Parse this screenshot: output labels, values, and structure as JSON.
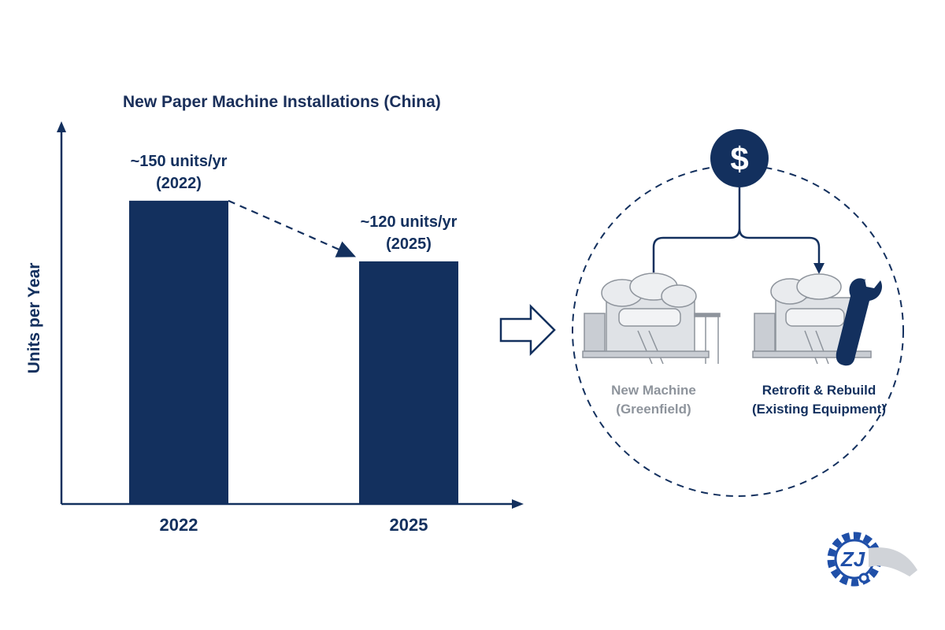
{
  "chart_data": {
    "type": "bar",
    "title": "New Paper Machine Installations (China)",
    "xlabel": "",
    "ylabel": "Units per Year",
    "categories": [
      "2022",
      "2025"
    ],
    "values": [
      150,
      120
    ],
    "data_labels": [
      [
        "~150 units/yr",
        "(2022)"
      ],
      [
        "~120 units/yr",
        "(2025)"
      ]
    ],
    "ylim": [
      0,
      185
    ],
    "grid": false,
    "bar_color": "#13305e"
  },
  "diagram": {
    "currency_icon": "dollar-icon",
    "options": [
      {
        "line1": "New Machine",
        "line2": "(Greenfield)",
        "icon": "paper-machine-icon",
        "color": "#8e949c"
      },
      {
        "line1": "Retrofit & Rebuild",
        "line2": "(Existing Equipment)",
        "icon": "paper-machine-wrench-icon",
        "color": "#13305e"
      }
    ]
  },
  "logo": {
    "text": "ZJ",
    "icon": "gear-logo-icon"
  }
}
